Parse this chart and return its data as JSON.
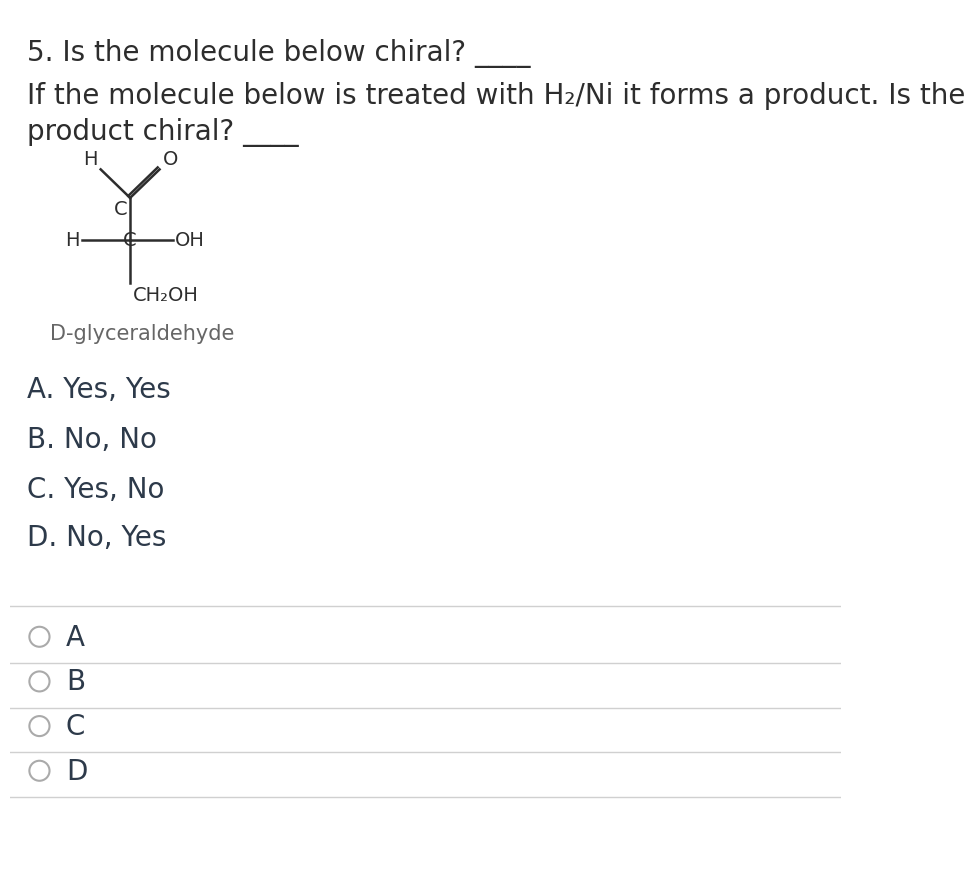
{
  "background_color": "#ffffff",
  "title_text": "5. Is the molecule below chiral? ____",
  "subtitle_line1": "If the molecule below is treated with H₂/Ni it forms a product. Is the",
  "subtitle_line2": "product chiral? ____",
  "label_glyceraldehyde": "D-glyceraldehyde",
  "choices": [
    "A. Yes, Yes",
    "B. No, No",
    "C. Yes, No",
    "D. No, Yes"
  ],
  "radio_labels": [
    "A",
    "B",
    "C",
    "D"
  ],
  "title_fontsize": 20,
  "subtitle_fontsize": 20,
  "choice_fontsize": 20,
  "radio_fontsize": 20,
  "label_fontsize": 15,
  "molecule_fontsize": 14,
  "text_color": "#2d2d2d",
  "choice_color": "#2d3a4a",
  "radio_color": "#b0b0b0",
  "line_color": "#d0d0d0",
  "mol_color": "#2d2d2d"
}
